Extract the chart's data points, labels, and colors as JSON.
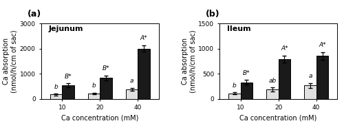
{
  "jejunum": {
    "title": "Jejunum",
    "ylabel": "Ca absorption\n(nmol/h/cm of sac)",
    "xlabel": "Ca concentration (mM)",
    "ylim": [
      0,
      3000
    ],
    "yticks": [
      0,
      1000,
      2000,
      3000
    ],
    "concentrations": [
      10,
      20,
      40
    ],
    "carbonate_means": [
      170,
      210,
      370
    ],
    "carbonate_errors": [
      30,
      40,
      60
    ],
    "carbonate_labels": [
      "b",
      "b",
      "a"
    ],
    "maltobionate_means": [
      530,
      830,
      2000
    ],
    "maltobionate_errors": [
      80,
      100,
      130
    ],
    "maltobionate_labels": [
      "B*",
      "B*",
      "A*"
    ]
  },
  "ileum": {
    "title": "Ileum",
    "ylabel": "Ca absorption\n(nmol/h/cm of sac)",
    "xlabel": "Ca concentration (mM)",
    "ylim": [
      0,
      1500
    ],
    "yticks": [
      0,
      500,
      1000,
      1500
    ],
    "concentrations": [
      10,
      20,
      40
    ],
    "carbonate_means": [
      110,
      185,
      265
    ],
    "carbonate_errors": [
      20,
      40,
      50
    ],
    "carbonate_labels": [
      "b",
      "ab",
      "a"
    ],
    "maltobionate_means": [
      330,
      790,
      855
    ],
    "maltobionate_errors": [
      45,
      70,
      75
    ],
    "maltobionate_labels": [
      "B*",
      "A*",
      "A*"
    ]
  },
  "bar_width": 0.32,
  "carbonate_color": "#e0e0e0",
  "maltobionate_color": "#1a1a1a",
  "carbonate_edge": "#000000",
  "maltobionate_edge": "#000000",
  "panel_labels": [
    "(a)",
    "(b)"
  ],
  "label_fontsize": 7,
  "title_fontsize": 8,
  "tick_fontsize": 6.5,
  "annot_fontsize": 6.5
}
